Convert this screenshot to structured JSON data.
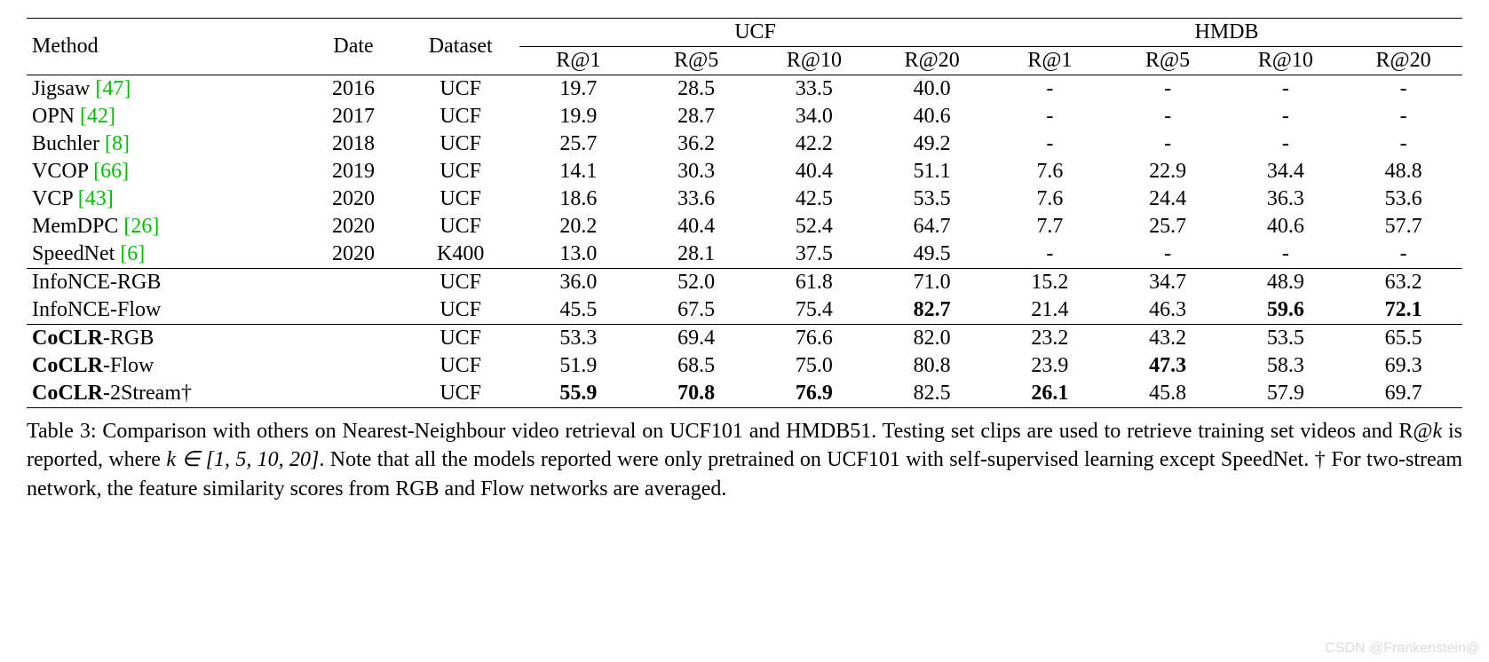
{
  "table": {
    "header_groups": [
      {
        "label": "Method",
        "rowspan": 2
      },
      {
        "label": "Date",
        "rowspan": 2
      },
      {
        "label": "Dataset",
        "rowspan": 2
      },
      {
        "label": "UCF",
        "colspan": 4
      },
      {
        "label": "HMDB",
        "colspan": 4
      }
    ],
    "sub_headers": [
      "R@1",
      "R@5",
      "R@10",
      "R@20",
      "R@1",
      "R@5",
      "R@10",
      "R@20"
    ],
    "rows": [
      {
        "method": {
          "text": "Jigsaw ",
          "cite": "[47]",
          "bold_prefix": ""
        },
        "date": "2016",
        "dataset": "UCF",
        "vals": [
          "19.7",
          "28.5",
          "33.5",
          "40.0",
          "-",
          "-",
          "-",
          "-"
        ],
        "bold": [
          0,
          0,
          0,
          0,
          0,
          0,
          0,
          0
        ],
        "section_start": false
      },
      {
        "method": {
          "text": "OPN ",
          "cite": "[42]",
          "bold_prefix": ""
        },
        "date": "2017",
        "dataset": "UCF",
        "vals": [
          "19.9",
          "28.7",
          "34.0",
          "40.6",
          "-",
          "-",
          "-",
          "-"
        ],
        "bold": [
          0,
          0,
          0,
          0,
          0,
          0,
          0,
          0
        ],
        "section_start": false
      },
      {
        "method": {
          "text": "Buchler ",
          "cite": "[8]",
          "bold_prefix": ""
        },
        "date": "2018",
        "dataset": "UCF",
        "vals": [
          "25.7",
          "36.2",
          "42.2",
          "49.2",
          "-",
          "-",
          "-",
          "-"
        ],
        "bold": [
          0,
          0,
          0,
          0,
          0,
          0,
          0,
          0
        ],
        "section_start": false
      },
      {
        "method": {
          "text": "VCOP ",
          "cite": "[66]",
          "bold_prefix": ""
        },
        "date": "2019",
        "dataset": "UCF",
        "vals": [
          "14.1",
          "30.3",
          "40.4",
          "51.1",
          "7.6",
          "22.9",
          "34.4",
          "48.8"
        ],
        "bold": [
          0,
          0,
          0,
          0,
          0,
          0,
          0,
          0
        ],
        "section_start": false
      },
      {
        "method": {
          "text": "VCP ",
          "cite": "[43]",
          "bold_prefix": ""
        },
        "date": "2020",
        "dataset": "UCF",
        "vals": [
          "18.6",
          "33.6",
          "42.5",
          "53.5",
          "7.6",
          "24.4",
          "36.3",
          "53.6"
        ],
        "bold": [
          0,
          0,
          0,
          0,
          0,
          0,
          0,
          0
        ],
        "section_start": false
      },
      {
        "method": {
          "text": "MemDPC ",
          "cite": "[26]",
          "bold_prefix": ""
        },
        "date": "2020",
        "dataset": "UCF",
        "vals": [
          "20.2",
          "40.4",
          "52.4",
          "64.7",
          "7.7",
          "25.7",
          "40.6",
          "57.7"
        ],
        "bold": [
          0,
          0,
          0,
          0,
          0,
          0,
          0,
          0
        ],
        "section_start": false
      },
      {
        "method": {
          "text": "SpeedNet ",
          "cite": "[6]",
          "bold_prefix": ""
        },
        "date": "2020",
        "dataset": "K400",
        "vals": [
          "13.0",
          "28.1",
          "37.5",
          "49.5",
          "-",
          "-",
          "-",
          "-"
        ],
        "bold": [
          0,
          0,
          0,
          0,
          0,
          0,
          0,
          0
        ],
        "section_start": false
      },
      {
        "method": {
          "text": "InfoNCE-RGB",
          "cite": "",
          "bold_prefix": ""
        },
        "date": "",
        "dataset": "UCF",
        "vals": [
          "36.0",
          "52.0",
          "61.8",
          "71.0",
          "15.2",
          "34.7",
          "48.9",
          "63.2"
        ],
        "bold": [
          0,
          0,
          0,
          0,
          0,
          0,
          0,
          0
        ],
        "section_start": true
      },
      {
        "method": {
          "text": "InfoNCE-Flow",
          "cite": "",
          "bold_prefix": ""
        },
        "date": "",
        "dataset": "UCF",
        "vals": [
          "45.5",
          "67.5",
          "75.4",
          "82.7",
          "21.4",
          "46.3",
          "59.6",
          "72.1"
        ],
        "bold": [
          0,
          0,
          0,
          1,
          0,
          0,
          1,
          1
        ],
        "section_start": false
      },
      {
        "method": {
          "text": "-RGB",
          "cite": "",
          "bold_prefix": "CoCLR"
        },
        "date": "",
        "dataset": "UCF",
        "vals": [
          "53.3",
          "69.4",
          "76.6",
          "82.0",
          "23.2",
          "43.2",
          "53.5",
          "65.5"
        ],
        "bold": [
          0,
          0,
          0,
          0,
          0,
          0,
          0,
          0
        ],
        "section_start": true
      },
      {
        "method": {
          "text": "-Flow",
          "cite": "",
          "bold_prefix": "CoCLR"
        },
        "date": "",
        "dataset": "UCF",
        "vals": [
          "51.9",
          "68.5",
          "75.0",
          "80.8",
          "23.9",
          "47.3",
          "58.3",
          "69.3"
        ],
        "bold": [
          0,
          0,
          0,
          0,
          0,
          1,
          0,
          0
        ],
        "section_start": false
      },
      {
        "method": {
          "text": "-2Stream†",
          "cite": "",
          "bold_prefix": "CoCLR"
        },
        "date": "",
        "dataset": "UCF",
        "vals": [
          "55.9",
          "70.8",
          "76.9",
          "82.5",
          "26.1",
          "45.8",
          "57.9",
          "69.7"
        ],
        "bold": [
          1,
          1,
          1,
          0,
          1,
          0,
          0,
          0
        ],
        "section_start": false
      }
    ],
    "colors": {
      "cite_color": "#00be00",
      "text_color": "#000000",
      "border_color": "#000000",
      "background_color": "#ffffff",
      "watermark_color": "#dcdcdc"
    },
    "fontsize": 24,
    "caption_prefix": "Table 3: ",
    "caption_body": "Comparison with others on Nearest-Neighbour video retrieval on UCF101 and HMDB51. Testing set clips are used to retrieve training set videos and R@",
    "caption_k": "k",
    "caption_mid": " is reported, where ",
    "caption_math": "k ∈ [1, 5, 10, 20]",
    "caption_tail": ". Note that all the models reported were only pretrained on UCF101 with self-supervised learning except SpeedNet. † For two-stream network, the feature similarity scores from RGB and Flow networks are averaged."
  },
  "watermark": "CSDN @Frankenstein@"
}
